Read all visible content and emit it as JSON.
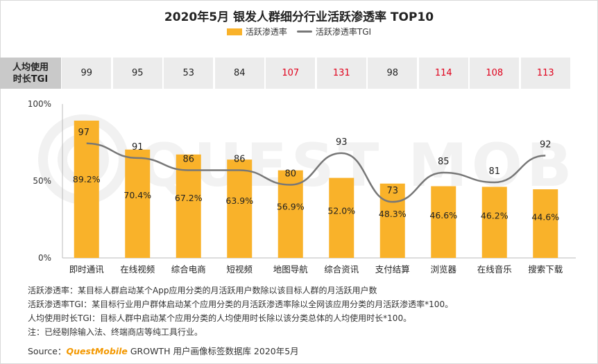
{
  "title": "2020年5月 银发人群细分行业活跃渗透率 TOP10",
  "legend": {
    "bar": "活跃渗透率",
    "line": "活跃渗透率TGI"
  },
  "tgi_row": {
    "label_line1": "人均使用",
    "label_line2": "时长TGI",
    "values": [
      "99",
      "95",
      "53",
      "84",
      "107",
      "131",
      "98",
      "114",
      "108",
      "113"
    ],
    "highlight_color": "#e0001b"
  },
  "watermark": "QUEST MOBILE",
  "colors": {
    "bar": "#F9B22A",
    "line": "#777777",
    "axis": "#bbbbbb"
  },
  "chart_data": {
    "type": "bar",
    "title": "2020年5月 银发人群细分行业活跃渗透率 TOP10",
    "categories": [
      "即时通讯",
      "在线视频",
      "综合电商",
      "短视频",
      "地图导航",
      "综合资讯",
      "支付结算",
      "浏览器",
      "在线音乐",
      "搜索下载"
    ],
    "series": [
      {
        "name": "活跃渗透率",
        "type": "bar",
        "values": [
          89.2,
          70.4,
          67.2,
          63.9,
          56.9,
          52.0,
          48.3,
          46.6,
          46.2,
          44.6
        ],
        "labels": [
          "89.2%",
          "70.4%",
          "67.2%",
          "63.9%",
          "56.9%",
          "52.0%",
          "48.3%",
          "46.6%",
          "46.2%",
          "44.6%"
        ]
      },
      {
        "name": "活跃渗透率TGI",
        "type": "line",
        "values": [
          97,
          91,
          86,
          86,
          80,
          93,
          73,
          85,
          81,
          92
        ],
        "labels": [
          "97",
          "91",
          "86",
          "86",
          "80",
          "93",
          "73",
          "85",
          "81",
          "92"
        ]
      }
    ],
    "y_ticks": [
      "100%",
      "50%",
      "0%"
    ],
    "ylim": [
      0,
      100
    ],
    "grid": false,
    "legend_position": "top-center"
  },
  "notes": [
    "活跃渗透率：某目标人群启动某个App应用分类的月活跃用户数除以该目标人群的月活跃用户数",
    "活跃渗透率TGI：某目标行业用户群体启动某个应用分类的月活跃渗透率除以全网该应用分类的月活跃渗透率*100。",
    "人均使用时长TGI：目标人群中启动某个应用分类的人均使用时长除以该分类总体的人均使用时长*100。",
    "注：已经剔除输入法、终端商店等纯工具行业。"
  ],
  "source": {
    "prefix": "Source：",
    "brand": "QuestMobile",
    "suffix": " GROWTH 用户画像标签数据库 2020年5月"
  }
}
